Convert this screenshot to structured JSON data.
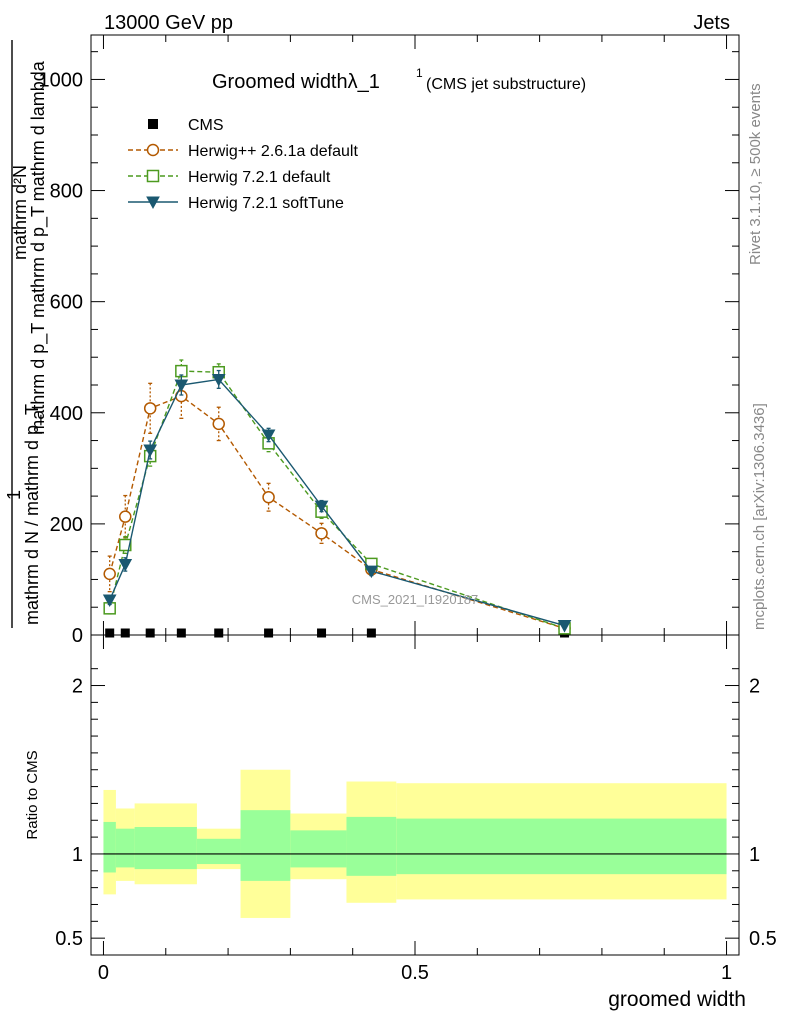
{
  "header": {
    "left": "13000 GeV pp",
    "right": "Jets"
  },
  "side_labels": {
    "rivet": "Rivet 3.1.10, ≥ 500k events",
    "mcplots": "mcplots.cern.ch [arXiv:1306.3436]"
  },
  "watermark": "CMS_2021_I1920187",
  "colors": {
    "cms": "#000000",
    "herwigpp": "#b35900",
    "herwig721": "#4c9a1f",
    "softtune": "#1a5870",
    "band_outer": "#ffff99",
    "band_inner": "#99ff99"
  },
  "chart_data": [
    {
      "type": "line",
      "title": "Groomed widthλ_1",
      "title_sup": "1",
      "subtitle": "(CMS jet substructure)",
      "ylabel_top": "1",
      "ylabel_frac_num": "mathrm d²N",
      "ylabel_frac_num_line2": "mathrm d p_T mathrm d p_T mathrm d lambda",
      "ylabel_frac_den": "mathrm d N / mathrm d p_T",
      "ylim": [
        0,
        1080
      ],
      "yticks": [
        0,
        200,
        400,
        600,
        800,
        1000
      ],
      "ytick_labels": [
        "0",
        "200",
        "400",
        "600",
        "800",
        "1000"
      ],
      "xlim": [
        -0.02,
        1.02
      ],
      "legend": {
        "position": "top-left"
      },
      "series": [
        {
          "name": "CMS",
          "style": "marker-square",
          "x": [
            0.01,
            0.035,
            0.075,
            0.125,
            0.185,
            0.265,
            0.35,
            0.43,
            0.74
          ],
          "y": [
            0,
            0,
            0,
            0,
            0,
            0,
            0,
            0,
            0
          ]
        },
        {
          "name": "Herwig++ 2.6.1a default",
          "style": "circle-dashed",
          "x": [
            0.01,
            0.035,
            0.075,
            0.125,
            0.185,
            0.265,
            0.35,
            0.43,
            0.74
          ],
          "y": [
            110,
            213,
            408,
            430,
            380,
            248,
            183,
            118,
            12
          ],
          "err": [
            32,
            38,
            45,
            40,
            30,
            25,
            18,
            10,
            3
          ]
        },
        {
          "name": "Herwig 7.2.1 default",
          "style": "square-dashed",
          "x": [
            0.01,
            0.035,
            0.075,
            0.125,
            0.185,
            0.265,
            0.35,
            0.43,
            0.74
          ],
          "y": [
            48,
            162,
            322,
            475,
            473,
            345,
            222,
            128,
            12
          ],
          "err": [
            10,
            15,
            18,
            20,
            15,
            15,
            12,
            8,
            3
          ]
        },
        {
          "name": "Herwig 7.2.1 softTune",
          "style": "triangle-solid",
          "x": [
            0.01,
            0.035,
            0.075,
            0.125,
            0.185,
            0.265,
            0.35,
            0.43,
            0.74
          ],
          "y": [
            63,
            127,
            333,
            450,
            460,
            360,
            232,
            115,
            17
          ],
          "err": [
            8,
            12,
            16,
            18,
            16,
            12,
            10,
            8,
            3
          ]
        }
      ]
    },
    {
      "type": "area",
      "ylabel": "Ratio to CMS",
      "xlabel": "groomed width",
      "ylim": [
        0.4,
        2.3
      ],
      "ytick_labels": [
        "0.5",
        "1",
        "2"
      ],
      "yticks": [
        0.5,
        1,
        2
      ],
      "xlim": [
        -0.02,
        1.02
      ],
      "xtick_labels": [
        "0",
        "0.5",
        "1"
      ],
      "xticks": [
        0,
        0.5,
        1
      ],
      "bins": [
        {
          "lo": 0.0,
          "hi": 0.02,
          "outer": [
            0.76,
            1.38
          ],
          "inner": [
            0.89,
            1.19
          ]
        },
        {
          "lo": 0.02,
          "hi": 0.05,
          "outer": [
            0.84,
            1.27
          ],
          "inner": [
            0.92,
            1.15
          ]
        },
        {
          "lo": 0.05,
          "hi": 0.15,
          "outer": [
            0.82,
            1.3
          ],
          "inner": [
            0.91,
            1.16
          ]
        },
        {
          "lo": 0.15,
          "hi": 0.22,
          "outer": [
            0.91,
            1.15
          ],
          "inner": [
            0.94,
            1.09
          ]
        },
        {
          "lo": 0.22,
          "hi": 0.3,
          "outer": [
            0.62,
            1.5
          ],
          "inner": [
            0.84,
            1.26
          ]
        },
        {
          "lo": 0.3,
          "hi": 0.39,
          "outer": [
            0.85,
            1.24
          ],
          "inner": [
            0.92,
            1.14
          ]
        },
        {
          "lo": 0.39,
          "hi": 0.47,
          "outer": [
            0.71,
            1.43
          ],
          "inner": [
            0.87,
            1.22
          ]
        },
        {
          "lo": 0.47,
          "hi": 1.0,
          "outer": [
            0.73,
            1.42
          ],
          "inner": [
            0.88,
            1.21
          ]
        }
      ]
    }
  ]
}
